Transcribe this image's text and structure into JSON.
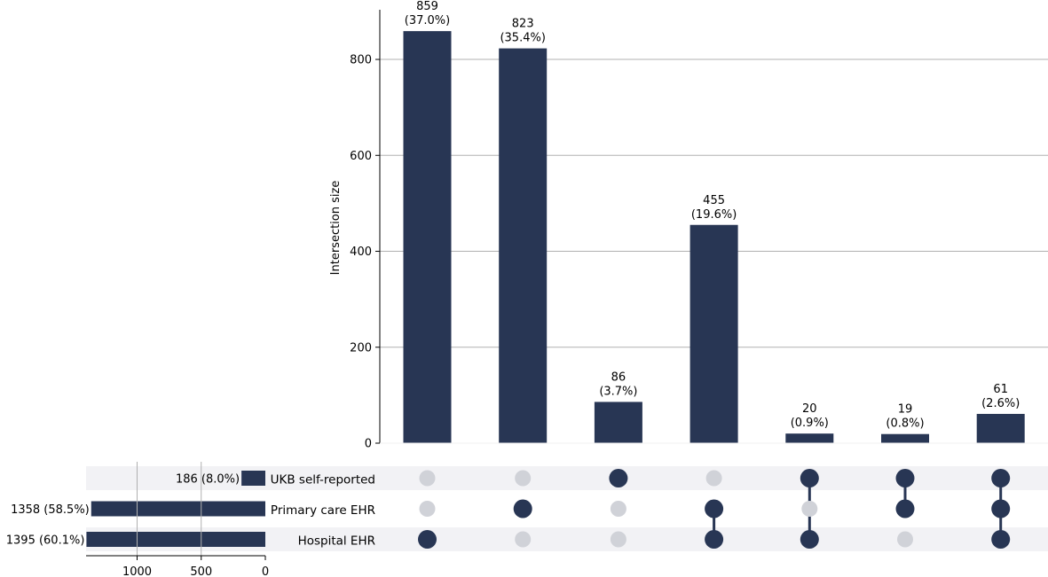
{
  "chart_data": {
    "type": "bar",
    "subtype": "upset",
    "ylabel": "Intersection size",
    "ylim": [
      0,
      900
    ],
    "y_ticks": [
      0,
      200,
      400,
      600,
      800
    ],
    "grid": true,
    "colors": {
      "bar": "#283654",
      "active_dot": "#283654",
      "inactive_dot": "#d0d2d8",
      "row_stripe": "#f2f2f5",
      "grid": "#b0b0b0"
    },
    "sets": [
      {
        "name": "UKB self-reported",
        "size": 186,
        "label": "186 (8.0%)"
      },
      {
        "name": "Primary care EHR",
        "size": 1358,
        "label": "1358 (58.5%)"
      },
      {
        "name": "Hospital EHR",
        "size": 1395,
        "label": "1395 (60.1%)"
      }
    ],
    "set_size_ticks": [
      1000,
      500,
      0
    ],
    "set_size_max": 1400,
    "intersections": [
      {
        "value": 859,
        "label": "859",
        "pct": "(37.0%)",
        "members": [
          "Hospital EHR"
        ]
      },
      {
        "value": 823,
        "label": "823",
        "pct": "(35.4%)",
        "members": [
          "Primary care EHR"
        ]
      },
      {
        "value": 86,
        "label": "86",
        "pct": "(3.7%)",
        "members": [
          "UKB self-reported"
        ]
      },
      {
        "value": 455,
        "label": "455",
        "pct": "(19.6%)",
        "members": [
          "Primary care EHR",
          "Hospital EHR"
        ]
      },
      {
        "value": 20,
        "label": "20",
        "pct": "(0.9%)",
        "members": [
          "UKB self-reported",
          "Hospital EHR"
        ]
      },
      {
        "value": 19,
        "label": "19",
        "pct": "(0.8%)",
        "members": [
          "UKB self-reported",
          "Primary care EHR"
        ]
      },
      {
        "value": 61,
        "label": "61",
        "pct": "(2.6%)",
        "members": [
          "UKB self-reported",
          "Primary care EHR",
          "Hospital EHR"
        ]
      }
    ]
  }
}
